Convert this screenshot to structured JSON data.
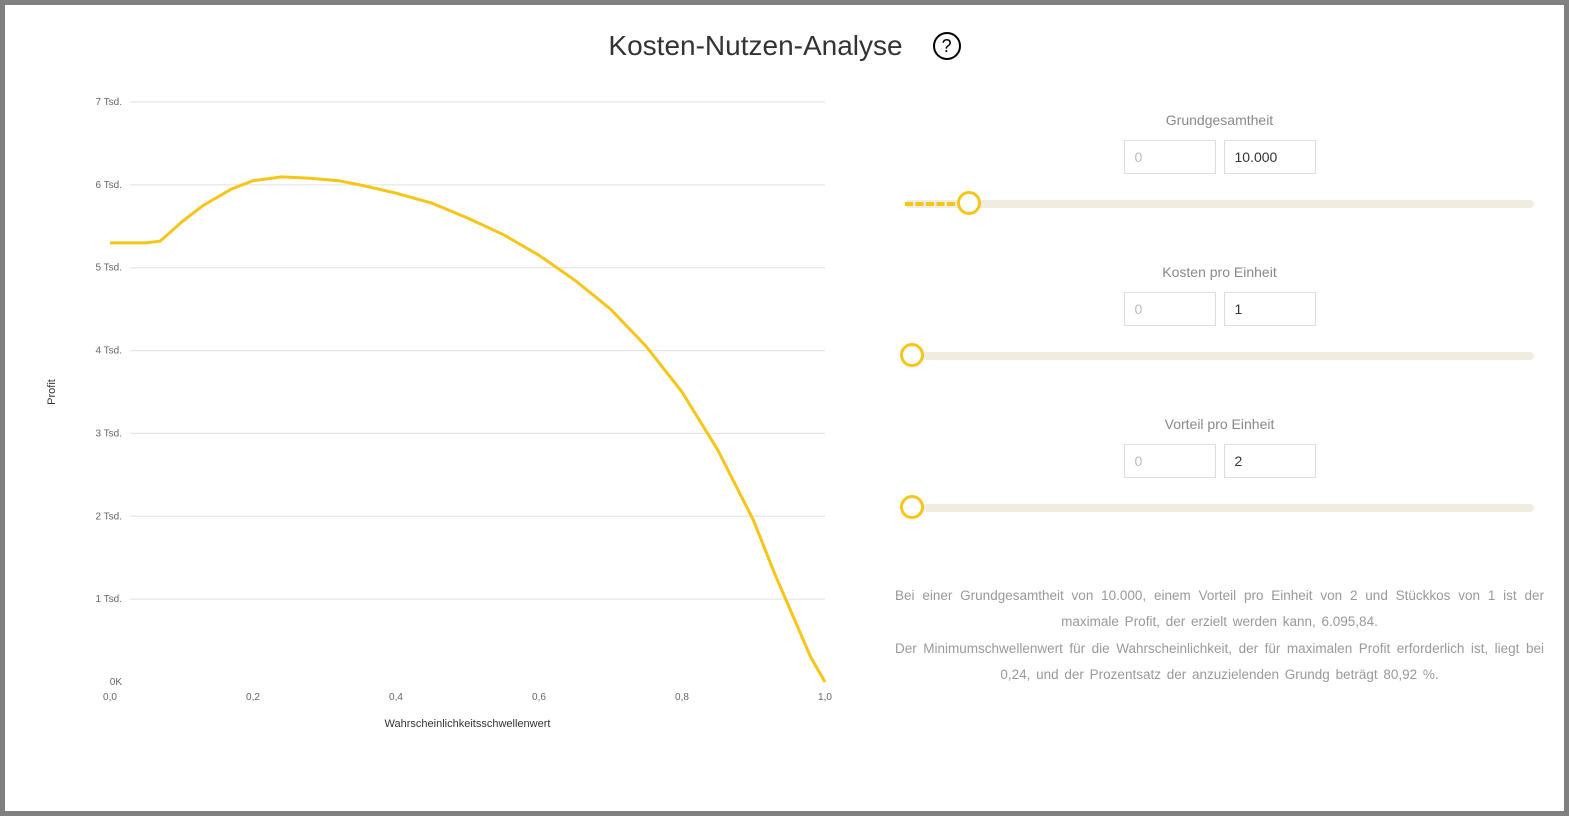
{
  "title": "Kosten-Nutzen-Analyse",
  "chart": {
    "type": "line",
    "y_axis_label": "Profit",
    "x_axis_label": "Wahrscheinlichkeitsschwellenwert",
    "y_ticks": [
      {
        "value": 0,
        "label": "0K"
      },
      {
        "value": 1000,
        "label": "1 Tsd."
      },
      {
        "value": 2000,
        "label": "2 Tsd."
      },
      {
        "value": 3000,
        "label": "3 Tsd."
      },
      {
        "value": 4000,
        "label": "4 Tsd."
      },
      {
        "value": 5000,
        "label": "5 Tsd."
      },
      {
        "value": 6000,
        "label": "6 Tsd."
      },
      {
        "value": 7000,
        "label": "7 Tsd."
      }
    ],
    "x_ticks": [
      {
        "value": 0.0,
        "label": "0,0"
      },
      {
        "value": 0.2,
        "label": "0,2"
      },
      {
        "value": 0.4,
        "label": "0,4"
      },
      {
        "value": 0.6,
        "label": "0,6"
      },
      {
        "value": 0.8,
        "label": "0,8"
      },
      {
        "value": 1.0,
        "label": "1,0"
      }
    ],
    "xlim": [
      0.0,
      1.0
    ],
    "ylim": [
      0,
      7000
    ],
    "line_color": "#f5c518",
    "line_width": 3,
    "grid_color": "#e0e0e0",
    "background_color": "#ffffff",
    "data_points": [
      {
        "x": 0.0,
        "y": 5300
      },
      {
        "x": 0.05,
        "y": 5300
      },
      {
        "x": 0.07,
        "y": 5320
      },
      {
        "x": 0.1,
        "y": 5550
      },
      {
        "x": 0.13,
        "y": 5750
      },
      {
        "x": 0.17,
        "y": 5950
      },
      {
        "x": 0.2,
        "y": 6050
      },
      {
        "x": 0.24,
        "y": 6096
      },
      {
        "x": 0.28,
        "y": 6080
      },
      {
        "x": 0.32,
        "y": 6050
      },
      {
        "x": 0.36,
        "y": 5980
      },
      {
        "x": 0.4,
        "y": 5900
      },
      {
        "x": 0.45,
        "y": 5780
      },
      {
        "x": 0.5,
        "y": 5600
      },
      {
        "x": 0.55,
        "y": 5400
      },
      {
        "x": 0.6,
        "y": 5150
      },
      {
        "x": 0.65,
        "y": 4850
      },
      {
        "x": 0.7,
        "y": 4500
      },
      {
        "x": 0.75,
        "y": 4050
      },
      {
        "x": 0.8,
        "y": 3500
      },
      {
        "x": 0.85,
        "y": 2800
      },
      {
        "x": 0.9,
        "y": 1950
      },
      {
        "x": 0.93,
        "y": 1300
      },
      {
        "x": 0.96,
        "y": 700
      },
      {
        "x": 0.98,
        "y": 300
      },
      {
        "x": 1.0,
        "y": 0
      }
    ]
  },
  "controls": {
    "population": {
      "label": "Grundgesamtheit",
      "min_placeholder": "0",
      "max_value": "10.000",
      "slider_position_pct": 13,
      "has_dash": true
    },
    "unit_cost": {
      "label": "Kosten pro Einheit",
      "min_placeholder": "0",
      "max_value": "1",
      "slider_position_pct": 0,
      "has_dash": false
    },
    "unit_benefit": {
      "label": "Vorteil pro Einheit",
      "min_placeholder": "0",
      "max_value": "2",
      "slider_position_pct": 0,
      "has_dash": false
    }
  },
  "summary": {
    "line1": "Bei einer Grundgesamtheit von 10.000, einem Vorteil pro Einheit von 2 und Stückkos von 1 ist der maximale Profit, der erzielt werden kann, 6.095,84.",
    "line2": "Der Minimumschwellenwert für die Wahrscheinlichkeit, der für maximalen Profit erforderlich ist, liegt bei 0,24, und der Prozentsatz der anzuzielenden Grundg beträgt 80,92 %."
  },
  "colors": {
    "accent": "#f5c518",
    "text_primary": "#333333",
    "text_secondary": "#888888",
    "text_muted": "#999999",
    "border": "#dddddd"
  }
}
